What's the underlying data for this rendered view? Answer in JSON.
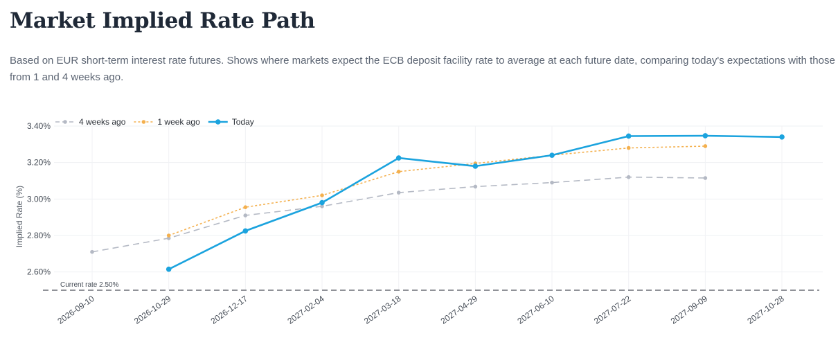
{
  "page": {
    "title": "Market Implied Rate Path",
    "subtitle": "Based on EUR short-term interest rate futures. Shows where markets expect the ECB deposit facility rate to average at each future date, comparing today's expectations with those from 1 and 4 weeks ago."
  },
  "chart_data": {
    "type": "line",
    "x": [
      "2026-09-10",
      "2026-10-29",
      "2026-12-17",
      "2027-02-04",
      "2027-03-18",
      "2027-04-29",
      "2027-06-10",
      "2027-07-22",
      "2027-09-09",
      "2027-10-28"
    ],
    "ylabel": "Implied Rate (%)",
    "ylim": [
      2.5,
      3.4
    ],
    "y_ticks": [
      2.6,
      2.8,
      3.0,
      3.2,
      3.4
    ],
    "y_tick_labels": [
      "2.60%",
      "2.80%",
      "3.00%",
      "3.20%",
      "3.40%"
    ],
    "grid": true,
    "legend_position": "top-left",
    "series": [
      {
        "name": "4 weeks ago",
        "color": "#b4b9c4",
        "dash": "dashed",
        "values": [
          2.71,
          2.785,
          2.91,
          2.96,
          3.035,
          3.068,
          3.09,
          3.12,
          3.115,
          null
        ]
      },
      {
        "name": "1 week ago",
        "color": "#f4b04e",
        "dash": "dotted",
        "values": [
          null,
          2.8,
          2.955,
          3.02,
          3.15,
          3.195,
          3.24,
          3.28,
          3.29,
          null
        ]
      },
      {
        "name": "Today",
        "color": "#1ba3de",
        "dash": "solid",
        "values": [
          null,
          2.615,
          2.825,
          2.98,
          3.225,
          3.18,
          3.24,
          3.345,
          3.347,
          3.34
        ]
      }
    ],
    "reference_line": {
      "value": 2.5,
      "label": "Current rate 2.50%",
      "color": "#6b6f76"
    }
  }
}
